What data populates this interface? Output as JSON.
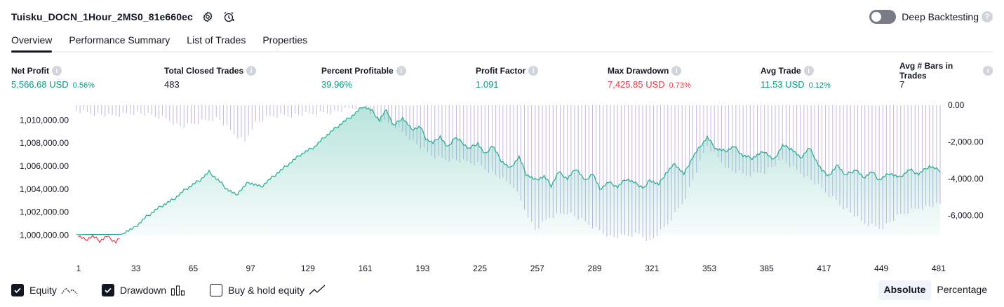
{
  "header": {
    "strategy_name": "Tuisku_DOCN_1Hour_2MS0_81e660ec",
    "deep_backtesting_label": "Deep Backtesting",
    "deep_backtesting_enabled": false,
    "help_glyph": "?"
  },
  "tabs": [
    {
      "label": "Overview",
      "active": true
    },
    {
      "label": "Performance Summary",
      "active": false
    },
    {
      "label": "List of Trades",
      "active": false
    },
    {
      "label": "Properties",
      "active": false
    }
  ],
  "metrics": [
    {
      "label": "Net Profit",
      "value": "5,566.68 USD",
      "pct": "0.56%",
      "color": "green"
    },
    {
      "label": "Total Closed Trades",
      "value": "483",
      "pct": "",
      "color": "dark"
    },
    {
      "label": "Percent Profitable",
      "value": "39.96%",
      "pct": "",
      "color": "green"
    },
    {
      "label": "Profit Factor",
      "value": "1.091",
      "pct": "",
      "color": "green"
    },
    {
      "label": "Max Drawdown",
      "value": "7,425.85 USD",
      "pct": "0.73%",
      "color": "red"
    },
    {
      "label": "Avg Trade",
      "value": "11.53 USD",
      "pct": "0.12%",
      "color": "green"
    },
    {
      "label": "Avg # Bars in Trades",
      "value": "7",
      "pct": "",
      "color": "dark"
    }
  ],
  "chart_data": {
    "type": "area",
    "x_ticks": [
      "1",
      "33",
      "65",
      "97",
      "129",
      "161",
      "193",
      "225",
      "257",
      "289",
      "321",
      "353",
      "385",
      "417",
      "449",
      "481"
    ],
    "left_axis_ticks": [
      "1,010,000.00",
      "1,008,000.00",
      "1,006,000.00",
      "1,004,000.00",
      "1,002,000.00",
      "1,000,000.00"
    ],
    "right_axis_ticks": [
      "0.00",
      "-2,000.00",
      "-4,000.00",
      "-6,000.00"
    ],
    "left_ylim": [
      999300,
      1011300
    ],
    "right_ylim": [
      -7425.85,
      0
    ],
    "x_range": [
      1,
      483
    ],
    "series": [
      {
        "name": "Equity",
        "color": "#22ab94",
        "negative_color": "#f23645",
        "points": [
          [
            1,
            1000000
          ],
          [
            6,
            999600
          ],
          [
            10,
            999900
          ],
          [
            14,
            999500
          ],
          [
            18,
            999900
          ],
          [
            23,
            999400
          ],
          [
            28,
            1000300
          ],
          [
            33,
            1000600
          ],
          [
            40,
            1001600
          ],
          [
            48,
            1002500
          ],
          [
            55,
            1003100
          ],
          [
            62,
            1004000
          ],
          [
            70,
            1004800
          ],
          [
            75,
            1005500
          ],
          [
            80,
            1004800
          ],
          [
            85,
            1004000
          ],
          [
            90,
            1003500
          ],
          [
            97,
            1004600
          ],
          [
            104,
            1004200
          ],
          [
            110,
            1005000
          ],
          [
            118,
            1006000
          ],
          [
            126,
            1007000
          ],
          [
            134,
            1007700
          ],
          [
            140,
            1008600
          ],
          [
            148,
            1009600
          ],
          [
            156,
            1010500
          ],
          [
            161,
            1011200
          ],
          [
            166,
            1010800
          ],
          [
            170,
            1010000
          ],
          [
            174,
            1010900
          ],
          [
            178,
            1009500
          ],
          [
            183,
            1010200
          ],
          [
            188,
            1009200
          ],
          [
            193,
            1009400
          ],
          [
            196,
            1008400
          ],
          [
            200,
            1008000
          ],
          [
            204,
            1008600
          ],
          [
            208,
            1007600
          ],
          [
            212,
            1008500
          ],
          [
            216,
            1008100
          ],
          [
            220,
            1007500
          ],
          [
            225,
            1008000
          ],
          [
            229,
            1007000
          ],
          [
            233,
            1007800
          ],
          [
            238,
            1006500
          ],
          [
            243,
            1005800
          ],
          [
            248,
            1006800
          ],
          [
            252,
            1005300
          ],
          [
            257,
            1004800
          ],
          [
            262,
            1005100
          ],
          [
            266,
            1004300
          ],
          [
            270,
            1005500
          ],
          [
            275,
            1004900
          ],
          [
            280,
            1005800
          ],
          [
            285,
            1004700
          ],
          [
            289,
            1005400
          ],
          [
            293,
            1004000
          ],
          [
            298,
            1004600
          ],
          [
            303,
            1004200
          ],
          [
            308,
            1004900
          ],
          [
            313,
            1004500
          ],
          [
            318,
            1004100
          ],
          [
            321,
            1004800
          ],
          [
            326,
            1004400
          ],
          [
            330,
            1005400
          ],
          [
            335,
            1006200
          ],
          [
            340,
            1005300
          ],
          [
            345,
            1006800
          ],
          [
            350,
            1007900
          ],
          [
            353,
            1008500
          ],
          [
            358,
            1007500
          ],
          [
            363,
            1007300
          ],
          [
            368,
            1007700
          ],
          [
            373,
            1006900
          ],
          [
            378,
            1006700
          ],
          [
            385,
            1007300
          ],
          [
            390,
            1006500
          ],
          [
            395,
            1007800
          ],
          [
            400,
            1007500
          ],
          [
            405,
            1006700
          ],
          [
            410,
            1007600
          ],
          [
            417,
            1005600
          ],
          [
            421,
            1005200
          ],
          [
            426,
            1006100
          ],
          [
            430,
            1005200
          ],
          [
            436,
            1005700
          ],
          [
            440,
            1005000
          ],
          [
            445,
            1005500
          ],
          [
            449,
            1004800
          ],
          [
            455,
            1005400
          ],
          [
            460,
            1005000
          ],
          [
            466,
            1005700
          ],
          [
            471,
            1005300
          ],
          [
            477,
            1006000
          ],
          [
            483,
            1005600
          ]
        ]
      },
      {
        "name": "Drawdown",
        "color": "#b39ddb",
        "points": [
          [
            1,
            -300
          ],
          [
            20,
            -600
          ],
          [
            33,
            -400
          ],
          [
            50,
            -700
          ],
          [
            60,
            -1200
          ],
          [
            70,
            -900
          ],
          [
            80,
            -700
          ],
          [
            88,
            -1500
          ],
          [
            95,
            -2000
          ],
          [
            100,
            -1000
          ],
          [
            110,
            -600
          ],
          [
            130,
            -500
          ],
          [
            150,
            -300
          ],
          [
            161,
            0
          ],
          [
            170,
            -800
          ],
          [
            180,
            -1200
          ],
          [
            193,
            -2300
          ],
          [
            200,
            -2800
          ],
          [
            225,
            -3200
          ],
          [
            245,
            -4400
          ],
          [
            257,
            -6800
          ],
          [
            265,
            -6100
          ],
          [
            275,
            -5800
          ],
          [
            289,
            -6600
          ],
          [
            300,
            -7200
          ],
          [
            315,
            -7000
          ],
          [
            321,
            -7400
          ],
          [
            330,
            -6600
          ],
          [
            340,
            -5200
          ],
          [
            353,
            -2200
          ],
          [
            365,
            -3500
          ],
          [
            375,
            -3800
          ],
          [
            385,
            -3600
          ],
          [
            395,
            -3000
          ],
          [
            410,
            -4000
          ],
          [
            425,
            -5200
          ],
          [
            440,
            -6400
          ],
          [
            450,
            -6700
          ],
          [
            460,
            -6000
          ],
          [
            470,
            -5600
          ],
          [
            483,
            -5400
          ]
        ]
      }
    ],
    "legend_items": [
      "Equity",
      "Drawdown",
      "Buy & hold equity"
    ]
  },
  "legend": {
    "equity": {
      "label": "Equity",
      "checked": true
    },
    "drawdown": {
      "label": "Drawdown",
      "checked": true
    },
    "buy_hold": {
      "label": "Buy & hold equity",
      "checked": false
    }
  },
  "mode_switch": {
    "absolute_label": "Absolute",
    "percentage_label": "Percentage",
    "selected": "Absolute"
  }
}
